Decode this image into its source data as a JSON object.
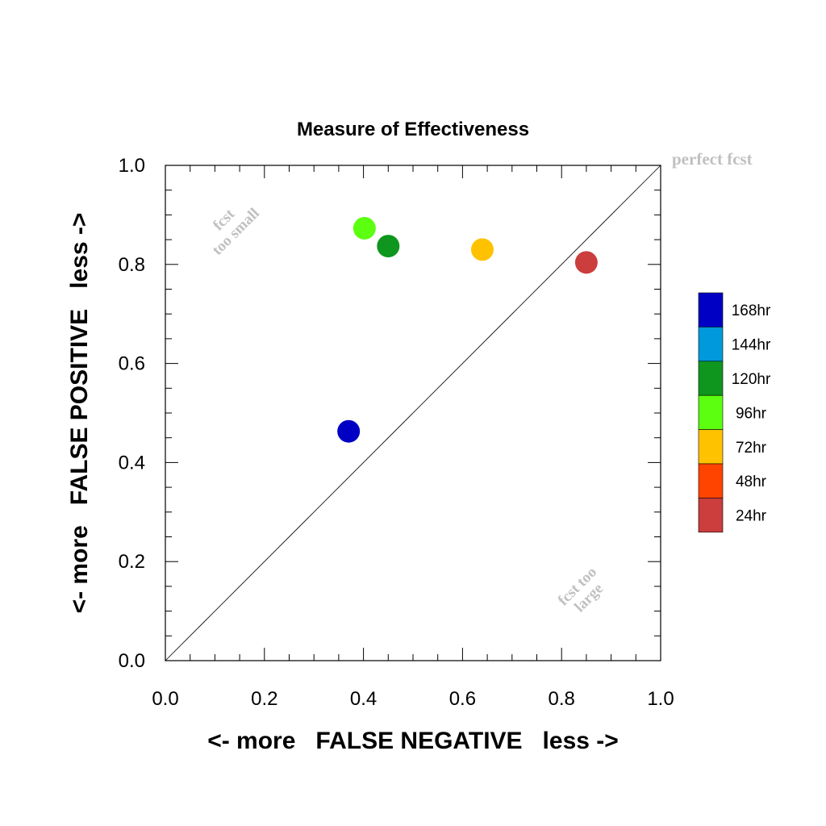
{
  "chart_data": {
    "type": "scatter",
    "title": "Measure of Effectiveness",
    "xlabel": "<- more   FALSE NEGATIVE   less ->",
    "ylabel": "<- more   FALSE POSITIVE   less ->",
    "xlim": [
      0,
      1
    ],
    "ylim": [
      0,
      1
    ],
    "x_ticks": [
      "0.0",
      "0.2",
      "0.4",
      "0.6",
      "0.8",
      "1.0"
    ],
    "y_ticks": [
      "0.0",
      "0.2",
      "0.4",
      "0.6",
      "0.8",
      "1.0"
    ],
    "grid": false,
    "diagonal_line": true,
    "annotations": {
      "perfect": "perfect fcst",
      "small_line1": "fcst",
      "small_line2": "too small",
      "large_line1": "fcst too",
      "large_line2": "large"
    },
    "legend_position": "right",
    "legend": [
      {
        "label": "168hr",
        "color": "#0000c4"
      },
      {
        "label": "144hr",
        "color": "#0099db"
      },
      {
        "label": "120hr",
        "color": "#0f961e"
      },
      {
        "label": "96hr",
        "color": "#5cff0f"
      },
      {
        "label": "72hr",
        "color": "#ffc200"
      },
      {
        "label": "48hr",
        "color": "#ff4400"
      },
      {
        "label": "24hr",
        "color": "#cc3d3d"
      }
    ],
    "points": [
      {
        "label": "168hr",
        "x": 0.37,
        "y": 0.463,
        "color": "#0000c4"
      },
      {
        "label": "96hr",
        "x": 0.402,
        "y": 0.873,
        "color": "#5cff0f"
      },
      {
        "label": "120hr",
        "x": 0.45,
        "y": 0.837,
        "color": "#0f961e"
      },
      {
        "label": "72hr",
        "x": 0.64,
        "y": 0.83,
        "color": "#ffc200"
      },
      {
        "label": "24hr",
        "x": 0.85,
        "y": 0.804,
        "color": "#cc3d3d"
      }
    ]
  }
}
